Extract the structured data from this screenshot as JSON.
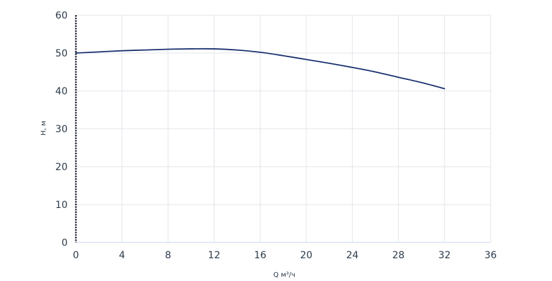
{
  "chart_data": {
    "type": "line",
    "title": "",
    "xlabel": "Q м³/ч",
    "ylabel": "H, м",
    "xlim": [
      0,
      36
    ],
    "ylim": [
      0,
      60
    ],
    "xticks": [
      0,
      4,
      8,
      12,
      16,
      20,
      24,
      28,
      32,
      36
    ],
    "yticks": [
      0,
      10,
      20,
      30,
      40,
      50,
      60
    ],
    "grid": true,
    "series": [
      {
        "color": "#1a2f6e",
        "x": [
          0,
          2,
          4,
          6,
          8,
          10,
          12,
          14,
          16,
          18,
          20,
          22,
          24,
          26,
          28,
          30,
          32
        ],
        "y": [
          50.0,
          50.3,
          50.6,
          50.8,
          51.0,
          51.1,
          51.1,
          50.8,
          50.2,
          49.3,
          48.3,
          47.3,
          46.2,
          45.0,
          43.6,
          42.2,
          40.6
        ]
      }
    ]
  }
}
